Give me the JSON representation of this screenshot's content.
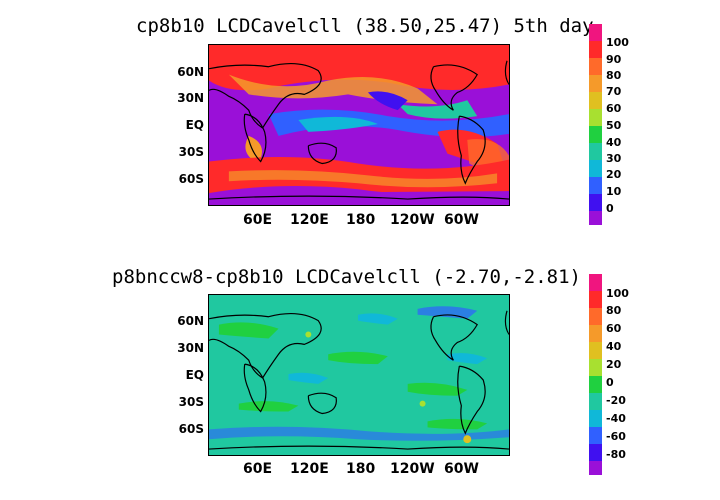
{
  "panels": [
    {
      "title": "cp8b10 LCDCavelcll (38.50,25.47) 5th day",
      "lat_labels": [
        "60N",
        "30N",
        "EQ",
        "30S",
        "60S"
      ],
      "lon_labels": [
        "60E",
        "120E",
        "180",
        "120W",
        "60W"
      ],
      "colorbar": {
        "labels": [
          "100",
          "90",
          "80",
          "70",
          "60",
          "50",
          "40",
          "30",
          "20",
          "10",
          "0"
        ],
        "colors": [
          "#f0157f",
          "#ff2a2a",
          "#ff6a2a",
          "#f59a2a",
          "#e0c020",
          "#a8e030",
          "#20d040",
          "#20c8a0",
          "#10b8d8",
          "#3060ff",
          "#4010f0",
          "#9a10d8"
        ]
      }
    },
    {
      "title": "p8bnccw8-cp8b10 LCDCavelcll (-2.70,-2.81)",
      "lat_labels": [
        "60N",
        "30N",
        "EQ",
        "30S",
        "60S"
      ],
      "lon_labels": [
        "60E",
        "120E",
        "180",
        "120W",
        "60W"
      ],
      "colorbar": {
        "labels": [
          "100",
          "80",
          "60",
          "40",
          "20",
          "0",
          "-20",
          "-40",
          "-60",
          "-80"
        ],
        "colors": [
          "#f0157f",
          "#ff2a2a",
          "#ff6a2a",
          "#f59a2a",
          "#e0c020",
          "#a8e030",
          "#20d040",
          "#20c8a0",
          "#10b8d8",
          "#3060ff",
          "#4010f0",
          "#9a10d8"
        ]
      }
    }
  ]
}
